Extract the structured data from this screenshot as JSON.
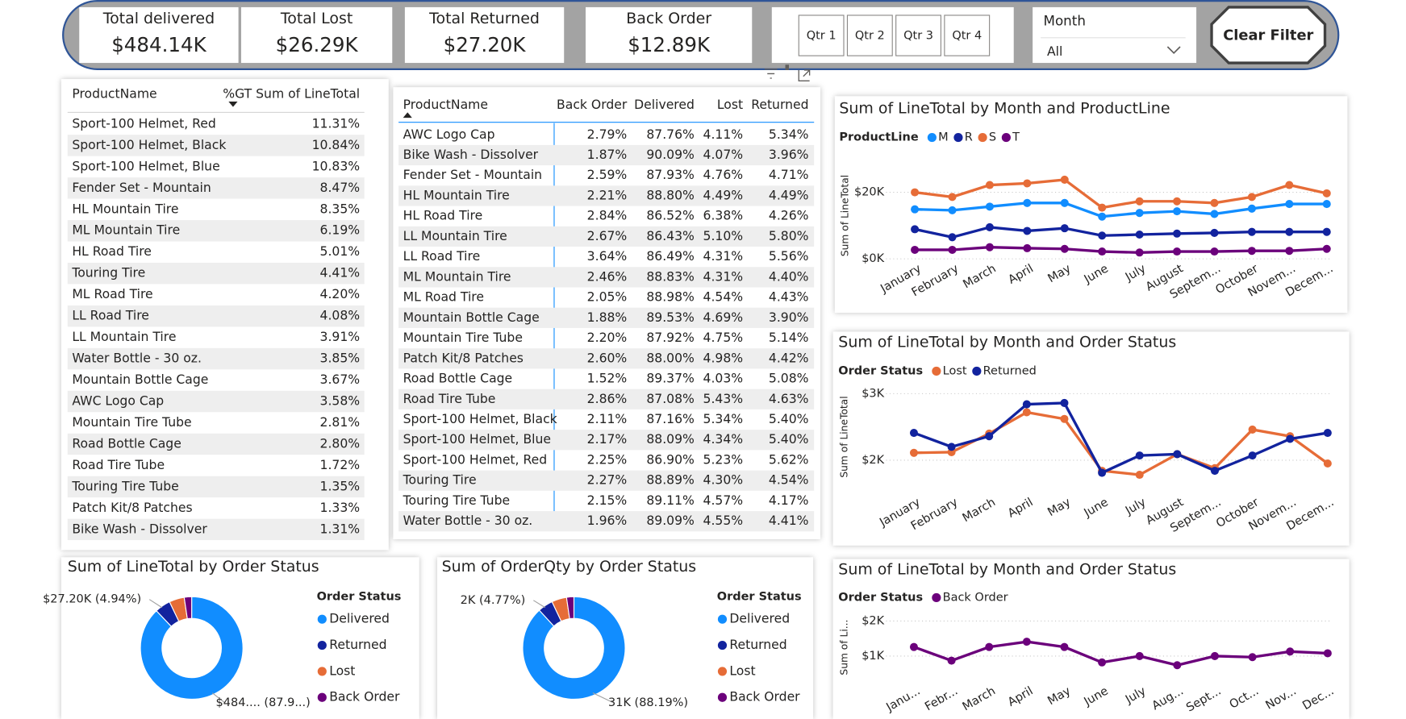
{
  "kpis": [
    {
      "title": "Total delivered",
      "value": "$484.14K"
    },
    {
      "title": "Total Lost",
      "value": "$26.29K"
    },
    {
      "title": "Total Returned",
      "value": "$27.20K"
    },
    {
      "title": "Back Order",
      "value": "$12.89K"
    }
  ],
  "quarter_slicer": [
    "Qtr 1",
    "Qtr 2",
    "Qtr 3",
    "Qtr 4"
  ],
  "month_slicer": {
    "label": "Month",
    "selected": "All"
  },
  "clear_filter": "Clear Filter",
  "product_share_table": {
    "columns": [
      "ProductName",
      "%GT Sum of LineTotal"
    ],
    "rows": [
      [
        "Sport-100 Helmet, Red",
        "11.31%"
      ],
      [
        "Sport-100 Helmet, Black",
        "10.84%"
      ],
      [
        "Sport-100 Helmet, Blue",
        "10.83%"
      ],
      [
        "Fender Set - Mountain",
        "8.47%"
      ],
      [
        "HL Mountain Tire",
        "8.35%"
      ],
      [
        "ML Mountain Tire",
        "6.19%"
      ],
      [
        "HL Road Tire",
        "5.01%"
      ],
      [
        "Touring Tire",
        "4.41%"
      ],
      [
        "ML Road Tire",
        "4.20%"
      ],
      [
        "LL Road Tire",
        "4.08%"
      ],
      [
        "LL Mountain Tire",
        "3.91%"
      ],
      [
        "Water Bottle - 30 oz.",
        "3.85%"
      ],
      [
        "Mountain Bottle Cage",
        "3.67%"
      ],
      [
        "AWC Logo Cap",
        "3.58%"
      ],
      [
        "Mountain Tire Tube",
        "2.81%"
      ],
      [
        "Road Bottle Cage",
        "2.80%"
      ],
      [
        "Road Tire Tube",
        "1.72%"
      ],
      [
        "Touring Tire Tube",
        "1.35%"
      ],
      [
        "Patch Kit/8 Patches",
        "1.33%"
      ],
      [
        "Bike Wash - Dissolver",
        "1.31%"
      ]
    ]
  },
  "status_table": {
    "columns": [
      "ProductName",
      "Back Order",
      "Delivered",
      "Lost",
      "Returned"
    ],
    "rows": [
      [
        "AWC Logo Cap",
        "2.79%",
        "87.76%",
        "4.11%",
        "5.34%"
      ],
      [
        "Bike Wash - Dissolver",
        "1.87%",
        "90.09%",
        "4.07%",
        "3.96%"
      ],
      [
        "Fender Set - Mountain",
        "2.59%",
        "87.93%",
        "4.76%",
        "4.71%"
      ],
      [
        "HL Mountain Tire",
        "2.21%",
        "88.80%",
        "4.49%",
        "4.49%"
      ],
      [
        "HL Road Tire",
        "2.84%",
        "86.52%",
        "6.38%",
        "4.26%"
      ],
      [
        "LL Mountain Tire",
        "2.67%",
        "86.43%",
        "5.10%",
        "5.80%"
      ],
      [
        "LL Road Tire",
        "3.64%",
        "86.49%",
        "4.31%",
        "5.56%"
      ],
      [
        "ML Mountain Tire",
        "2.46%",
        "88.83%",
        "4.31%",
        "4.40%"
      ],
      [
        "ML Road Tire",
        "2.05%",
        "88.98%",
        "4.54%",
        "4.43%"
      ],
      [
        "Mountain Bottle Cage",
        "1.88%",
        "89.53%",
        "4.69%",
        "3.90%"
      ],
      [
        "Mountain Tire Tube",
        "2.20%",
        "87.92%",
        "4.75%",
        "5.14%"
      ],
      [
        "Patch Kit/8 Patches",
        "2.60%",
        "88.00%",
        "4.98%",
        "4.42%"
      ],
      [
        "Road Bottle Cage",
        "1.52%",
        "89.37%",
        "4.03%",
        "5.08%"
      ],
      [
        "Road Tire Tube",
        "2.86%",
        "87.08%",
        "5.43%",
        "4.63%"
      ],
      [
        "Sport-100 Helmet, Black",
        "2.11%",
        "87.16%",
        "5.34%",
        "5.40%"
      ],
      [
        "Sport-100 Helmet, Blue",
        "2.17%",
        "88.09%",
        "4.34%",
        "5.40%"
      ],
      [
        "Sport-100 Helmet, Red",
        "2.25%",
        "86.90%",
        "5.23%",
        "5.62%"
      ],
      [
        "Touring Tire",
        "2.27%",
        "88.89%",
        "4.30%",
        "4.54%"
      ],
      [
        "Touring Tire Tube",
        "2.15%",
        "89.11%",
        "4.57%",
        "4.17%"
      ],
      [
        "Water Bottle - 30 oz.",
        "1.96%",
        "89.09%",
        "4.55%",
        "4.41%"
      ]
    ]
  },
  "chart_data": [
    {
      "type": "line",
      "title": "Sum of LineTotal by Month and ProductLine",
      "legend_title": "ProductLine",
      "y_label": "Sum of LineTotal",
      "categories": [
        "January",
        "February",
        "March",
        "April",
        "May",
        "June",
        "July",
        "August",
        "Septem...",
        "October",
        "Novem...",
        "Decem..."
      ],
      "series": [
        {
          "name": "M",
          "color": "#118dff",
          "values": [
            14900,
            14600,
            15700,
            16800,
            16800,
            12700,
            13800,
            14300,
            13500,
            15100,
            16500,
            16500
          ]
        },
        {
          "name": "R",
          "color": "#12239e",
          "values": [
            8900,
            6500,
            9500,
            8400,
            9200,
            7000,
            7300,
            7600,
            7800,
            8100,
            8100,
            8100
          ]
        },
        {
          "name": "S",
          "color": "#e66c37",
          "values": [
            20000,
            18600,
            22200,
            22700,
            23800,
            15400,
            17300,
            17300,
            16800,
            18600,
            22200,
            19700
          ]
        },
        {
          "name": "T",
          "color": "#6b007b",
          "values": [
            2700,
            2700,
            3500,
            3200,
            3000,
            2200,
            1900,
            2200,
            2200,
            2400,
            2400,
            3000
          ]
        }
      ],
      "ylim": [
        0,
        26000
      ],
      "yticks": [
        {
          "value": 0,
          "label": "$0K"
        },
        {
          "value": 20000,
          "label": "$20K"
        }
      ],
      "grid": true
    },
    {
      "type": "line",
      "title": "Sum of LineTotal by Month and Order Status",
      "legend_title": "Order Status",
      "y_label": "Sum of LineTotal",
      "categories": [
        "January",
        "February",
        "March",
        "April",
        "May",
        "June",
        "July",
        "August",
        "Septem...",
        "October",
        "Novem...",
        "Decem..."
      ],
      "series": [
        {
          "name": "Lost",
          "color": "#e66c37",
          "values": [
            2110,
            2120,
            2400,
            2720,
            2620,
            1840,
            1780,
            2090,
            1880,
            2460,
            2360,
            1950
          ]
        },
        {
          "name": "Returned",
          "color": "#12239e",
          "values": [
            2410,
            2200,
            2360,
            2840,
            2860,
            1810,
            2070,
            2090,
            1840,
            2070,
            2320,
            2410
          ]
        }
      ],
      "ylim": [
        1600,
        3100
      ],
      "yticks": [
        {
          "value": 2000,
          "label": "$2K"
        },
        {
          "value": 3000,
          "label": "$3K"
        }
      ],
      "grid": true
    },
    {
      "type": "donut",
      "title": "Sum of LineTotal by Order Status",
      "legend_title": "Order Status",
      "categories": [
        "Delivered",
        "Returned",
        "Lost",
        "Back Order"
      ],
      "colors": [
        "#118dff",
        "#12239e",
        "#e66c37",
        "#6b007b"
      ],
      "values": [
        484140,
        27200,
        26290,
        12890
      ],
      "value_labels": [
        "$484.... (87.9...)",
        "$27.20K (4.94%)",
        null,
        null
      ]
    },
    {
      "type": "donut",
      "title": "Sum of OrderQty by Order Status",
      "legend_title": "Order Status",
      "categories": [
        "Delivered",
        "Returned",
        "Lost",
        "Back Order"
      ],
      "colors": [
        "#118dff",
        "#12239e",
        "#e66c37",
        "#6b007b"
      ],
      "values": [
        31000,
        1677,
        1660,
        814
      ],
      "value_labels": [
        "31K (88.19%)",
        "2K (4.77%)",
        null,
        null
      ]
    },
    {
      "type": "line",
      "title": "Sum of LineTotal by Month and Order Status",
      "legend_title": "Order Status",
      "y_label": "Sum of Li...",
      "categories": [
        "Janu...",
        "Febr...",
        "March",
        "April",
        "May",
        "June",
        "July",
        "Aug...",
        "Sept...",
        "Oct...",
        "Nov...",
        "Dec..."
      ],
      "series": [
        {
          "name": "Back Order",
          "color": "#6b007b",
          "values": [
            1260,
            870,
            1260,
            1410,
            1260,
            820,
            1000,
            740,
            1000,
            970,
            1130,
            1080
          ]
        }
      ],
      "ylim": [
        200,
        2300
      ],
      "yticks": [
        {
          "value": 1000,
          "label": "$1K"
        },
        {
          "value": 2000,
          "label": "$2K"
        }
      ],
      "grid": true
    }
  ]
}
